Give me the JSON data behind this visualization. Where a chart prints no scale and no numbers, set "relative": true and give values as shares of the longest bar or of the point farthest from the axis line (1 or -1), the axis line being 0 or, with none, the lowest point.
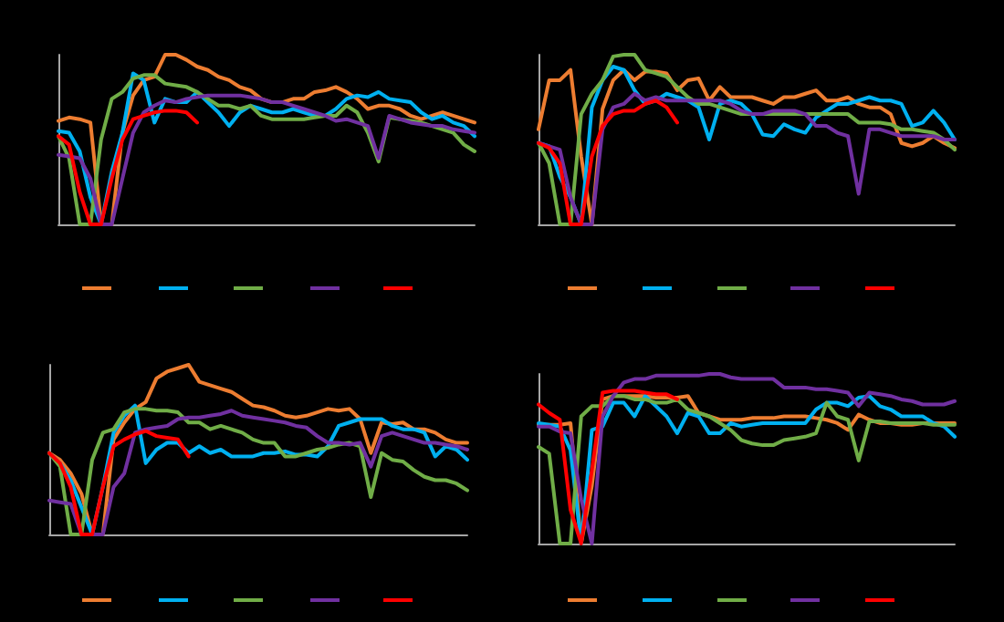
{
  "chart_data": [
    {
      "type": "line",
      "relative": true,
      "categories": [
        null,
        null,
        null,
        null,
        null,
        null,
        null,
        null,
        null,
        null,
        null,
        null,
        null,
        null,
        null,
        null,
        null,
        null,
        null,
        null,
        null,
        null,
        null,
        null,
        null,
        null,
        null,
        null,
        null,
        null,
        null,
        null,
        null,
        null,
        null,
        null,
        null,
        null,
        null,
        null
      ],
      "series": [
        {
          "color": "#ed7d31",
          "values": [
            0.61,
            0.63,
            0.62,
            0.6,
            0,
            0,
            0.54,
            0.76,
            0.85,
            0.87,
            1,
            1,
            0.97,
            0.93,
            0.91,
            0.87,
            0.85,
            0.81,
            0.79,
            0.74,
            0.72,
            0.72,
            0.74,
            0.74,
            0.78,
            0.79,
            0.81,
            0.78,
            0.74,
            0.68,
            0.7,
            0.7,
            0.68,
            0.64,
            0.62,
            0.64,
            0.66,
            0.64,
            0.62,
            0.6
          ]
        },
        {
          "color": "#00b0f0",
          "values": [
            0.55,
            0.54,
            0.43,
            0.16,
            0,
            0.31,
            0.54,
            0.89,
            0.85,
            0.6,
            0.74,
            0.72,
            0.72,
            0.78,
            0.72,
            0.66,
            0.58,
            0.66,
            0.7,
            0.68,
            0.66,
            0.66,
            0.68,
            0.66,
            0.64,
            0.64,
            0.68,
            0.74,
            0.76,
            0.75,
            0.78,
            0.74,
            0.73,
            0.72,
            0.66,
            0.62,
            0.64,
            0.6,
            0.58,
            0.52
          ]
        },
        {
          "color": "#70ad47",
          "values": [
            0.52,
            0.39,
            0,
            0,
            0.5,
            0.74,
            0.78,
            0.86,
            0.88,
            0.88,
            0.83,
            0.82,
            0.81,
            0.78,
            0.74,
            0.7,
            0.7,
            0.68,
            0.7,
            0.64,
            0.62,
            0.62,
            0.62,
            0.62,
            0.63,
            0.64,
            0.64,
            0.7,
            0.66,
            0.54,
            0.37,
            0.63,
            0.62,
            0.61,
            0.6,
            0.58,
            0.56,
            0.54,
            0.47,
            0.43
          ]
        },
        {
          "color": "#7030a0",
          "values": [
            0.41,
            0.4,
            0.39,
            0.27,
            0,
            0,
            0.27,
            0.54,
            0.66,
            0.7,
            0.73,
            0.72,
            0.74,
            0.75,
            0.76,
            0.76,
            0.76,
            0.76,
            0.75,
            0.74,
            0.72,
            0.72,
            0.7,
            0.68,
            0.66,
            0.64,
            0.61,
            0.62,
            0.6,
            0.58,
            0.39,
            0.64,
            0.62,
            0.6,
            0.59,
            0.58,
            0.58,
            0.56,
            0.55,
            0.54
          ]
        },
        {
          "color": "#ff0000",
          "values": [
            0.52,
            0.47,
            0.19,
            0,
            0,
            0.27,
            0.5,
            0.62,
            0.64,
            0.66,
            0.67,
            0.67,
            0.66,
            0.6,
            null,
            null,
            null,
            null,
            null,
            null,
            null,
            null,
            null,
            null,
            null,
            null,
            null,
            null,
            null,
            null,
            null,
            null,
            null,
            null,
            null,
            null,
            null,
            null,
            null,
            null
          ]
        }
      ]
    },
    {
      "type": "line",
      "relative": true,
      "categories": [
        null,
        null,
        null,
        null,
        null,
        null,
        null,
        null,
        null,
        null,
        null,
        null,
        null,
        null,
        null,
        null,
        null,
        null,
        null,
        null,
        null,
        null,
        null,
        null,
        null,
        null,
        null,
        null,
        null,
        null,
        null,
        null,
        null,
        null,
        null,
        null,
        null,
        null,
        null,
        null
      ],
      "series": [
        {
          "color": "#ed7d31",
          "values": [
            0.56,
            0.85,
            0.85,
            0.91,
            0.4,
            0,
            0.68,
            0.85,
            0.91,
            0.85,
            0.9,
            0.9,
            0.89,
            0.79,
            0.85,
            0.86,
            0.73,
            0.81,
            0.75,
            0.75,
            0.75,
            0.73,
            0.71,
            0.75,
            0.75,
            0.77,
            0.79,
            0.73,
            0.73,
            0.75,
            0.71,
            0.69,
            0.69,
            0.65,
            0.48,
            0.46,
            0.48,
            0.52,
            0.48,
            0.45
          ]
        },
        {
          "color": "#00b0f0",
          "values": [
            0.48,
            0.46,
            0.28,
            0.16,
            0,
            0.69,
            0.85,
            0.93,
            0.91,
            0.79,
            0.71,
            0.73,
            0.77,
            0.75,
            0.73,
            0.69,
            0.5,
            0.71,
            0.73,
            0.71,
            0.65,
            0.53,
            0.52,
            0.59,
            0.56,
            0.54,
            0.63,
            0.67,
            0.71,
            0.71,
            0.73,
            0.75,
            0.73,
            0.73,
            0.71,
            0.58,
            0.6,
            0.67,
            0.6,
            0.5
          ]
        },
        {
          "color": "#70ad47",
          "values": [
            0.48,
            0.36,
            0,
            0,
            0.65,
            0.77,
            0.85,
            0.99,
            1,
            1,
            0.91,
            0.89,
            0.87,
            0.81,
            0.75,
            0.71,
            0.71,
            0.69,
            0.67,
            0.65,
            0.65,
            0.65,
            0.65,
            0.65,
            0.65,
            0.65,
            0.65,
            0.65,
            0.65,
            0.65,
            0.6,
            0.6,
            0.6,
            0.59,
            0.56,
            0.56,
            0.55,
            0.54,
            0.5,
            0.44
          ]
        },
        {
          "color": "#7030a0",
          "values": [
            0.48,
            0.46,
            0.44,
            0.16,
            0,
            0,
            0.56,
            0.69,
            0.71,
            0.77,
            0.73,
            0.75,
            0.73,
            0.73,
            0.73,
            0.73,
            0.73,
            0.73,
            0.71,
            0.67,
            0.65,
            0.65,
            0.67,
            0.67,
            0.67,
            0.65,
            0.58,
            0.58,
            0.54,
            0.52,
            0.18,
            0.56,
            0.56,
            0.54,
            0.52,
            0.52,
            0.52,
            0.52,
            0.5,
            0.5
          ]
        },
        {
          "color": "#ff0000",
          "values": [
            0.48,
            0.45,
            0.36,
            0,
            0,
            0.4,
            0.58,
            0.65,
            0.67,
            0.67,
            0.71,
            0.73,
            0.69,
            0.6,
            null,
            null,
            null,
            null,
            null,
            null,
            null,
            null,
            null,
            null,
            null,
            null,
            null,
            null,
            null,
            null,
            null,
            null,
            null,
            null,
            null,
            null,
            null,
            null,
            null,
            null
          ]
        }
      ]
    },
    {
      "type": "line",
      "relative": true,
      "categories": [
        null,
        null,
        null,
        null,
        null,
        null,
        null,
        null,
        null,
        null,
        null,
        null,
        null,
        null,
        null,
        null,
        null,
        null,
        null,
        null,
        null,
        null,
        null,
        null,
        null,
        null,
        null,
        null,
        null,
        null,
        null,
        null,
        null,
        null,
        null,
        null,
        null,
        null,
        null,
        null
      ],
      "series": [
        {
          "color": "#ed7d31",
          "values": [
            0.48,
            0.44,
            0.36,
            0.24,
            0,
            0,
            0.56,
            0.66,
            0.74,
            0.78,
            0.92,
            0.96,
            0.98,
            1,
            0.9,
            0.88,
            0.86,
            0.84,
            0.8,
            0.76,
            0.75,
            0.73,
            0.7,
            0.69,
            0.7,
            0.72,
            0.74,
            0.73,
            0.74,
            0.68,
            0.48,
            0.66,
            0.65,
            0.66,
            0.62,
            0.62,
            0.6,
            0.56,
            0.54,
            0.54
          ]
        },
        {
          "color": "#00b0f0",
          "values": [
            0.48,
            0.42,
            0.32,
            0.16,
            0,
            0.28,
            0.6,
            0.7,
            0.76,
            0.42,
            0.5,
            0.54,
            0.54,
            0.48,
            0.52,
            0.48,
            0.5,
            0.46,
            0.46,
            0.46,
            0.48,
            0.48,
            0.49,
            0.47,
            0.47,
            0.46,
            0.52,
            0.64,
            0.66,
            0.68,
            0.68,
            0.68,
            0.64,
            0.62,
            0.62,
            0.6,
            0.46,
            0.52,
            0.5,
            0.44
          ]
        },
        {
          "color": "#70ad47",
          "values": [
            0.48,
            0.4,
            0,
            0,
            0.44,
            0.6,
            0.62,
            0.72,
            0.74,
            0.74,
            0.73,
            0.73,
            0.72,
            0.66,
            0.66,
            0.62,
            0.64,
            0.62,
            0.6,
            0.56,
            0.54,
            0.54,
            0.46,
            0.46,
            0.48,
            0.5,
            0.51,
            0.53,
            0.54,
            0.52,
            0.22,
            0.48,
            0.44,
            0.43,
            0.38,
            0.34,
            0.32,
            0.32,
            0.3,
            0.26
          ]
        },
        {
          "color": "#7030a0",
          "values": [
            0.2,
            0.19,
            0.18,
            0,
            0,
            0,
            0.28,
            0.36,
            0.6,
            0.62,
            0.63,
            0.64,
            0.68,
            0.69,
            0.69,
            0.7,
            0.71,
            0.73,
            0.7,
            0.69,
            0.68,
            0.67,
            0.66,
            0.64,
            0.63,
            0.58,
            0.54,
            0.54,
            0.53,
            0.54,
            0.4,
            0.58,
            0.6,
            0.58,
            0.56,
            0.54,
            0.54,
            0.53,
            0.52,
            0.5
          ]
        },
        {
          "color": "#ff0000",
          "values": [
            0.48,
            0.42,
            0.28,
            0,
            0,
            0.28,
            0.52,
            0.56,
            0.59,
            0.61,
            0.58,
            0.57,
            0.56,
            0.46,
            null,
            null,
            null,
            null,
            null,
            null,
            null,
            null,
            null,
            null,
            null,
            null,
            null,
            null,
            null,
            null,
            null,
            null,
            null,
            null,
            null,
            null,
            null,
            null,
            null,
            null
          ]
        }
      ]
    },
    {
      "type": "line",
      "relative": true,
      "categories": [
        null,
        null,
        null,
        null,
        null,
        null,
        null,
        null,
        null,
        null,
        null,
        null,
        null,
        null,
        null,
        null,
        null,
        null,
        null,
        null,
        null,
        null,
        null,
        null,
        null,
        null,
        null,
        null,
        null,
        null,
        null,
        null,
        null,
        null,
        null,
        null,
        null,
        null,
        null,
        null
      ],
      "series": [
        {
          "color": "#ed7d31",
          "values": [
            0.7,
            0.7,
            0.7,
            0.71,
            0,
            0.34,
            0.85,
            0.87,
            0.87,
            0.87,
            0.87,
            0.86,
            0.86,
            0.86,
            0.87,
            0.77,
            0.75,
            0.73,
            0.73,
            0.73,
            0.74,
            0.74,
            0.74,
            0.75,
            0.75,
            0.75,
            0.74,
            0.73,
            0.71,
            0.67,
            0.76,
            0.73,
            0.71,
            0.71,
            0.7,
            0.7,
            0.71,
            0.71,
            0.71,
            0.71
          ]
        },
        {
          "color": "#00b0f0",
          "values": [
            0.71,
            0.7,
            0.69,
            0.55,
            0,
            0.67,
            0.69,
            0.83,
            0.83,
            0.75,
            0.87,
            0.81,
            0.75,
            0.65,
            0.77,
            0.75,
            0.65,
            0.65,
            0.71,
            0.69,
            0.7,
            0.71,
            0.71,
            0.71,
            0.71,
            0.71,
            0.79,
            0.83,
            0.83,
            0.81,
            0.86,
            0.87,
            0.81,
            0.79,
            0.75,
            0.75,
            0.75,
            0.71,
            0.69,
            0.63
          ]
        },
        {
          "color": "#70ad47",
          "values": [
            0.57,
            0.53,
            0,
            0,
            0.75,
            0.81,
            0.81,
            0.87,
            0.87,
            0.85,
            0.85,
            0.83,
            0.83,
            0.85,
            0.79,
            0.77,
            0.75,
            0.71,
            0.67,
            0.61,
            0.59,
            0.58,
            0.58,
            0.61,
            0.62,
            0.63,
            0.65,
            0.83,
            0.75,
            0.73,
            0.49,
            0.72,
            0.72,
            0.71,
            0.71,
            0.71,
            0.71,
            0.7,
            0.7,
            0.7
          ]
        },
        {
          "color": "#7030a0",
          "values": [
            0.69,
            0.69,
            0.66,
            0.65,
            0.26,
            0,
            0.75,
            0.87,
            0.95,
            0.97,
            0.97,
            0.99,
            0.99,
            0.99,
            0.99,
            0.99,
            1,
            1,
            0.98,
            0.97,
            0.97,
            0.97,
            0.97,
            0.92,
            0.92,
            0.92,
            0.91,
            0.91,
            0.9,
            0.89,
            0.81,
            0.89,
            0.88,
            0.87,
            0.85,
            0.84,
            0.82,
            0.82,
            0.82,
            0.84
          ]
        },
        {
          "color": "#ff0000",
          "values": [
            0.82,
            0.77,
            0.73,
            0.2,
            0,
            0.43,
            0.89,
            0.9,
            0.9,
            0.9,
            0.89,
            0.88,
            0.88,
            0.85,
            null,
            null,
            null,
            null,
            null,
            null,
            null,
            null,
            null,
            null,
            null,
            null,
            null,
            null,
            null,
            null,
            null,
            null,
            null,
            null,
            null,
            null,
            null,
            null,
            null,
            null
          ]
        }
      ]
    }
  ]
}
